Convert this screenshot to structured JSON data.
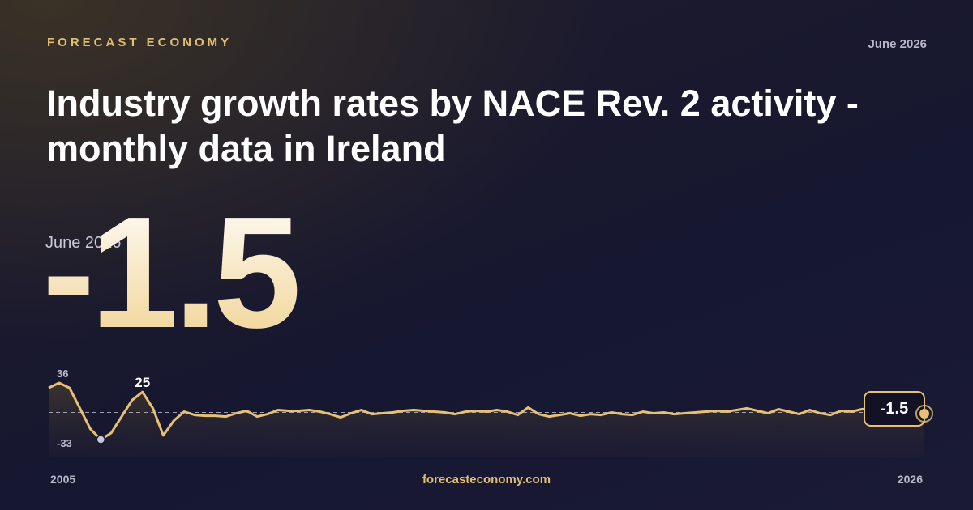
{
  "brand": "FORECAST ECONOMY",
  "footer": "forecasteconomy.com",
  "chart_data": {
    "type": "line",
    "title": "Industry growth rates by NACE Rev. 2 activity - monthly data in Ireland",
    "date": "June 2026",
    "color": "#e8c074",
    "baseline": 0,
    "categories": [
      "2005",
      null,
      null,
      null,
      null,
      null,
      null,
      null,
      null,
      null,
      null,
      null,
      null,
      null,
      null,
      null,
      null,
      null,
      null,
      null,
      null,
      null,
      null,
      null,
      null,
      null,
      null,
      null,
      null,
      null,
      null,
      null,
      null,
      null,
      null,
      null,
      null,
      null,
      null,
      null,
      null,
      null,
      null,
      null,
      null,
      null,
      null,
      null,
      null,
      null,
      null,
      null,
      null,
      null,
      null,
      null,
      null,
      null,
      null,
      null,
      null,
      null,
      null,
      null,
      null,
      null,
      null,
      null,
      null,
      null,
      null,
      null,
      null,
      null,
      null,
      null,
      null,
      null,
      null,
      null,
      null,
      null,
      null,
      null,
      "2026"
    ],
    "values": [
      30,
      36,
      30,
      5,
      -20,
      -33,
      -25,
      -5,
      15,
      25,
      5,
      -28,
      -10,
      1,
      -3,
      -4,
      -4,
      -5,
      -1,
      2,
      -5,
      -2,
      3,
      2,
      2,
      3,
      1,
      -2,
      -6,
      -1,
      3,
      -2,
      -1,
      0,
      2,
      3,
      2,
      1,
      0,
      -2,
      1,
      2,
      1,
      3,
      1,
      -3,
      6,
      -2,
      -5,
      -3,
      -1,
      -4,
      -2,
      -3,
      0,
      -2,
      -3,
      1,
      -1,
      0,
      -2,
      -1,
      0,
      1,
      2,
      1,
      3,
      5,
      2,
      -1,
      4,
      1,
      -2,
      3,
      -1,
      -3,
      2,
      1,
      4,
      5,
      3,
      2,
      1,
      0,
      -1.5
    ],
    "annotations": [
      1,
      9,
      5
    ]
  }
}
